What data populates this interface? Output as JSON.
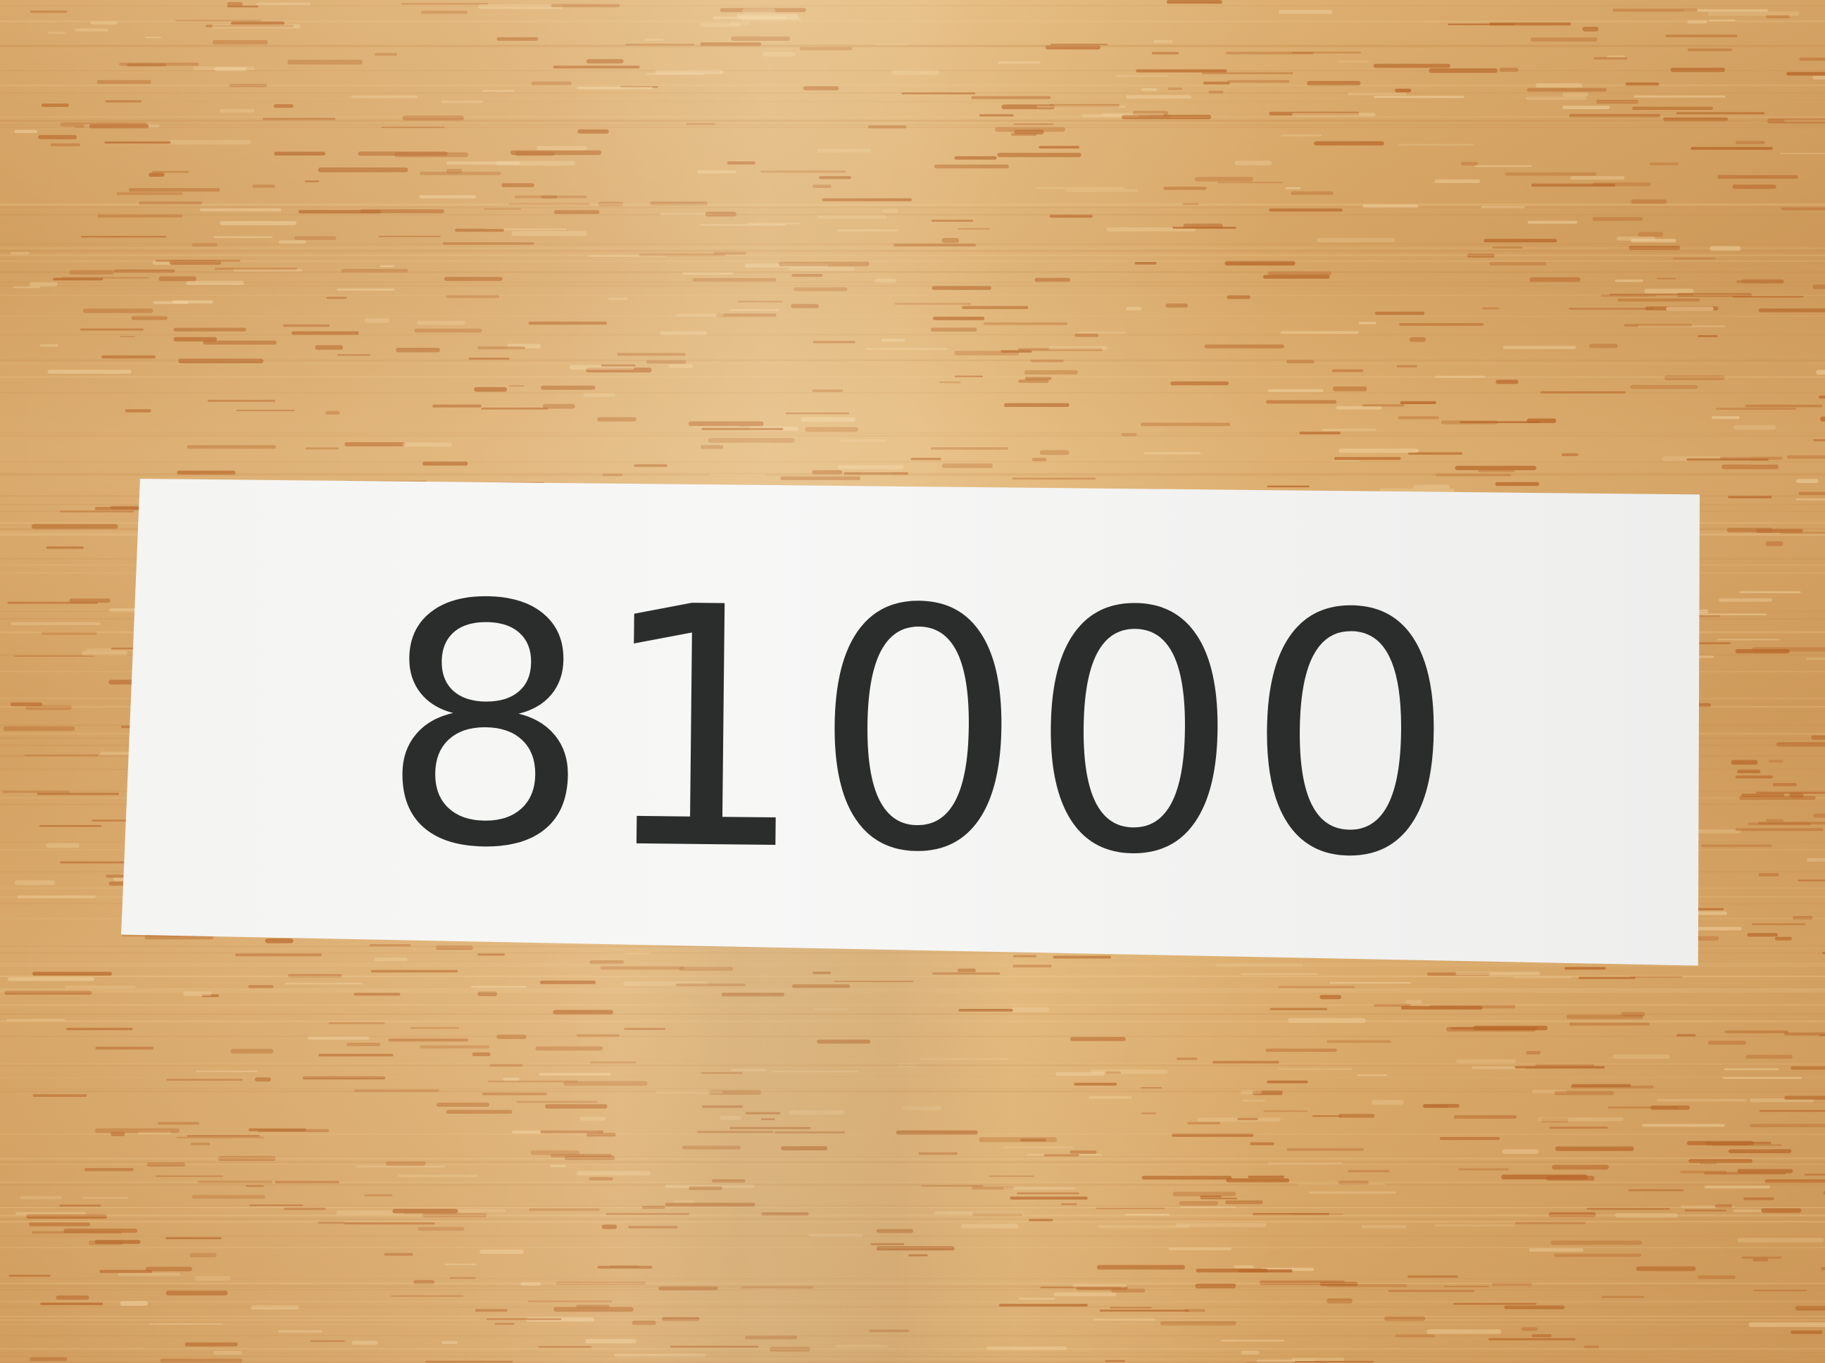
{
  "label": {
    "text": "81000"
  },
  "colors": {
    "wood": "#d9a868",
    "grain": "#b86a2a",
    "paper": "#f5f5f3",
    "ink": "#2b2d2c"
  }
}
